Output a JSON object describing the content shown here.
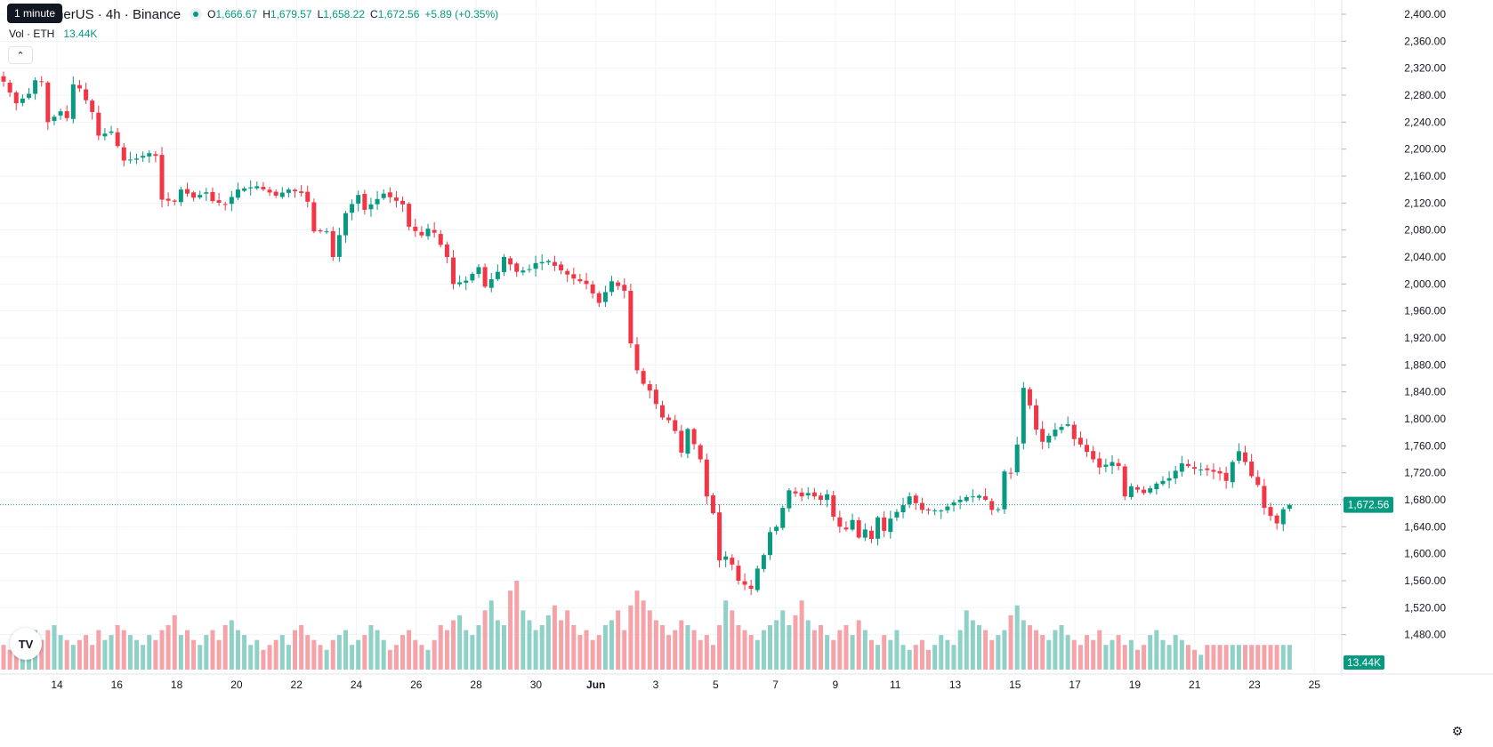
{
  "header": {
    "symbol_title": "um / TetherUS · 4h · Binance",
    "tooltip": "1 minute",
    "ohlc": {
      "o_label": "O",
      "o": "1,666.67",
      "h_label": "H",
      "h": "1,679.57",
      "l_label": "L",
      "l": "1,658.22",
      "c_label": "C",
      "c": "1,672.56",
      "change": "+5.89 (+0.35%)"
    },
    "volume_label": "Vol · ETH",
    "volume_value": "13.44K",
    "logo_text": "TV"
  },
  "icons": {
    "collapse": "chevron-up-icon",
    "settings": "gear-icon",
    "logo": "tradingview-logo-icon",
    "status": "market-status-dot-icon"
  },
  "colors": {
    "up": "#089981",
    "down": "#f23645",
    "vol_up": "#8fd1c7",
    "vol_down": "#f5a3a9",
    "grid": "#f0f3fa"
  },
  "chart_data": {
    "type": "candlestick",
    "price_axis": {
      "min": 1440,
      "max": 2400,
      "step": 40,
      "ticks": [
        "2,400.00",
        "2,360.00",
        "2,320.00",
        "2,280.00",
        "2,240.00",
        "2,200.00",
        "2,160.00",
        "2,120.00",
        "2,080.00",
        "2,040.00",
        "2,000.00",
        "1,960.00",
        "1,920.00",
        "1,880.00",
        "1,840.00",
        "1,800.00",
        "1,760.00",
        "1,720.00",
        "1,680.00",
        "1,640.00",
        "1,600.00",
        "1,560.00",
        "1,520.00",
        "1,480.00"
      ]
    },
    "time_axis": {
      "labels": [
        "14",
        "16",
        "18",
        "20",
        "22",
        "24",
        "26",
        "28",
        "30",
        "Jun",
        "3",
        "5",
        "7",
        "9",
        "11",
        "13",
        "15",
        "17",
        "19",
        "21",
        "23",
        "25"
      ],
      "bold_label": "Jun"
    },
    "last_price": "1,672.56",
    "last_value": 1672.56,
    "last_volume": "13.44K",
    "grid": true,
    "path": [
      [
        0,
        2300
      ],
      [
        2,
        2268
      ],
      [
        4,
        2282
      ],
      [
        5,
        2302
      ],
      [
        6,
        2300
      ],
      [
        7,
        2240
      ],
      [
        9,
        2256
      ],
      [
        10,
        2246
      ],
      [
        11,
        2296
      ],
      [
        12,
        2290
      ],
      [
        14,
        2255
      ],
      [
        15,
        2220
      ],
      [
        17,
        2226
      ],
      [
        19,
        2183
      ],
      [
        21,
        2186
      ],
      [
        23,
        2194
      ],
      [
        24,
        2190
      ],
      [
        25,
        2125
      ],
      [
        27,
        2122
      ],
      [
        28,
        2140
      ],
      [
        30,
        2128
      ],
      [
        32,
        2136
      ],
      [
        33,
        2123
      ],
      [
        35,
        2118
      ],
      [
        37,
        2140
      ],
      [
        40,
        2145
      ],
      [
        43,
        2131
      ],
      [
        45,
        2140
      ],
      [
        47,
        2135
      ],
      [
        48,
        2122
      ],
      [
        49,
        2078
      ],
      [
        51,
        2078
      ],
      [
        52,
        2040
      ],
      [
        54,
        2105
      ],
      [
        56,
        2132
      ],
      [
        57,
        2110
      ],
      [
        60,
        2134
      ],
      [
        63,
        2118
      ],
      [
        64,
        2085
      ],
      [
        66,
        2072
      ],
      [
        67,
        2082
      ],
      [
        68,
        2076
      ],
      [
        70,
        2040
      ],
      [
        71,
        2000
      ],
      [
        73,
        2005
      ],
      [
        75,
        2025
      ],
      [
        76,
        1996
      ],
      [
        78,
        2018
      ],
      [
        79,
        2040
      ],
      [
        81,
        2018
      ],
      [
        83,
        2022
      ],
      [
        84,
        2031
      ],
      [
        86,
        2034
      ],
      [
        88,
        2020
      ],
      [
        90,
        2008
      ],
      [
        92,
        2000
      ],
      [
        94,
        1972
      ],
      [
        96,
        2004
      ],
      [
        98,
        1990
      ],
      [
        99,
        1912
      ],
      [
        100,
        1872
      ],
      [
        101,
        1852
      ],
      [
        102,
        1842
      ],
      [
        104,
        1802
      ],
      [
        105,
        1798
      ],
      [
        106,
        1782
      ],
      [
        107,
        1750
      ],
      [
        108,
        1785
      ],
      [
        110,
        1740
      ],
      [
        111,
        1685
      ],
      [
        112,
        1660
      ],
      [
        113,
        1590
      ],
      [
        114,
        1596
      ],
      [
        115,
        1584
      ],
      [
        116,
        1560
      ],
      [
        118,
        1548
      ],
      [
        119,
        1578
      ],
      [
        120,
        1598
      ],
      [
        121,
        1632
      ],
      [
        122,
        1640
      ],
      [
        123,
        1668
      ],
      [
        124,
        1694
      ],
      [
        126,
        1685
      ],
      [
        127,
        1690
      ],
      [
        129,
        1680
      ],
      [
        130,
        1688
      ],
      [
        131,
        1655
      ],
      [
        132,
        1640
      ],
      [
        133,
        1636
      ],
      [
        134,
        1650
      ],
      [
        135,
        1624
      ],
      [
        136,
        1636
      ],
      [
        137,
        1622
      ],
      [
        138,
        1654
      ],
      [
        139,
        1634
      ],
      [
        140,
        1652
      ],
      [
        142,
        1672
      ],
      [
        143,
        1685
      ],
      [
        145,
        1665
      ],
      [
        148,
        1664
      ],
      [
        150,
        1676
      ],
      [
        152,
        1684
      ],
      [
        154,
        1686
      ],
      [
        155,
        1680
      ],
      [
        156,
        1665
      ],
      [
        157,
        1666
      ],
      [
        158,
        1722
      ],
      [
        159,
        1720
      ],
      [
        160,
        1762
      ],
      [
        161,
        1846
      ],
      [
        162,
        1820
      ],
      [
        163,
        1784
      ],
      [
        164,
        1766
      ],
      [
        166,
        1784
      ],
      [
        168,
        1792
      ],
      [
        169,
        1770
      ],
      [
        170,
        1762
      ],
      [
        172,
        1740
      ],
      [
        173,
        1728
      ],
      [
        175,
        1736
      ],
      [
        176,
        1730
      ],
      [
        177,
        1685
      ],
      [
        178,
        1700
      ],
      [
        180,
        1690
      ],
      [
        182,
        1704
      ],
      [
        184,
        1712
      ],
      [
        186,
        1734
      ],
      [
        188,
        1726
      ],
      [
        190,
        1724
      ],
      [
        192,
        1719
      ],
      [
        193,
        1708
      ],
      [
        194,
        1736
      ],
      [
        195,
        1752
      ],
      [
        196,
        1736
      ],
      [
        197,
        1715
      ],
      [
        198,
        1702
      ],
      [
        199,
        1668
      ],
      [
        200,
        1656
      ],
      [
        201,
        1645
      ],
      [
        202,
        1666
      ],
      [
        203,
        1672.56
      ]
    ],
    "volumes": [
      5,
      4,
      4,
      6,
      7,
      8,
      6,
      8,
      9,
      7,
      6,
      5,
      6,
      7,
      5,
      8,
      6,
      7,
      9,
      8,
      7,
      6,
      5,
      7,
      6,
      8,
      9,
      11,
      7,
      8,
      6,
      5,
      7,
      8,
      6,
      9,
      10,
      8,
      7,
      5,
      6,
      4,
      5,
      6,
      7,
      5,
      8,
      9,
      7,
      6,
      5,
      4,
      6,
      7,
      8,
      5,
      6,
      7,
      9,
      8,
      6,
      4,
      5,
      7,
      8,
      6,
      5,
      4,
      6,
      9,
      8,
      10,
      11,
      8,
      7,
      9,
      12,
      14,
      10,
      9,
      16,
      18,
      12,
      10,
      8,
      9,
      11,
      13,
      10,
      12,
      9,
      7,
      8,
      6,
      7,
      9,
      10,
      12,
      8,
      13,
      16,
      14,
      12,
      10,
      9,
      7,
      8,
      10,
      9,
      8,
      6,
      7,
      5,
      9,
      14,
      12,
      9,
      8,
      7,
      6,
      8,
      9,
      10,
      12,
      9,
      11,
      14,
      10,
      8,
      9,
      7,
      6,
      8,
      9,
      7,
      10,
      8,
      6,
      5,
      7,
      6,
      8,
      5,
      4,
      5,
      6,
      4,
      5,
      7,
      6,
      5,
      8,
      12,
      10,
      9,
      8,
      6,
      7,
      8,
      11,
      13,
      10,
      9,
      8,
      7,
      6,
      8,
      9,
      7,
      6,
      5,
      7,
      6,
      8,
      5,
      6,
      7,
      5,
      6,
      4,
      5,
      7,
      8,
      6,
      5,
      7,
      6,
      5,
      4,
      3
    ]
  }
}
